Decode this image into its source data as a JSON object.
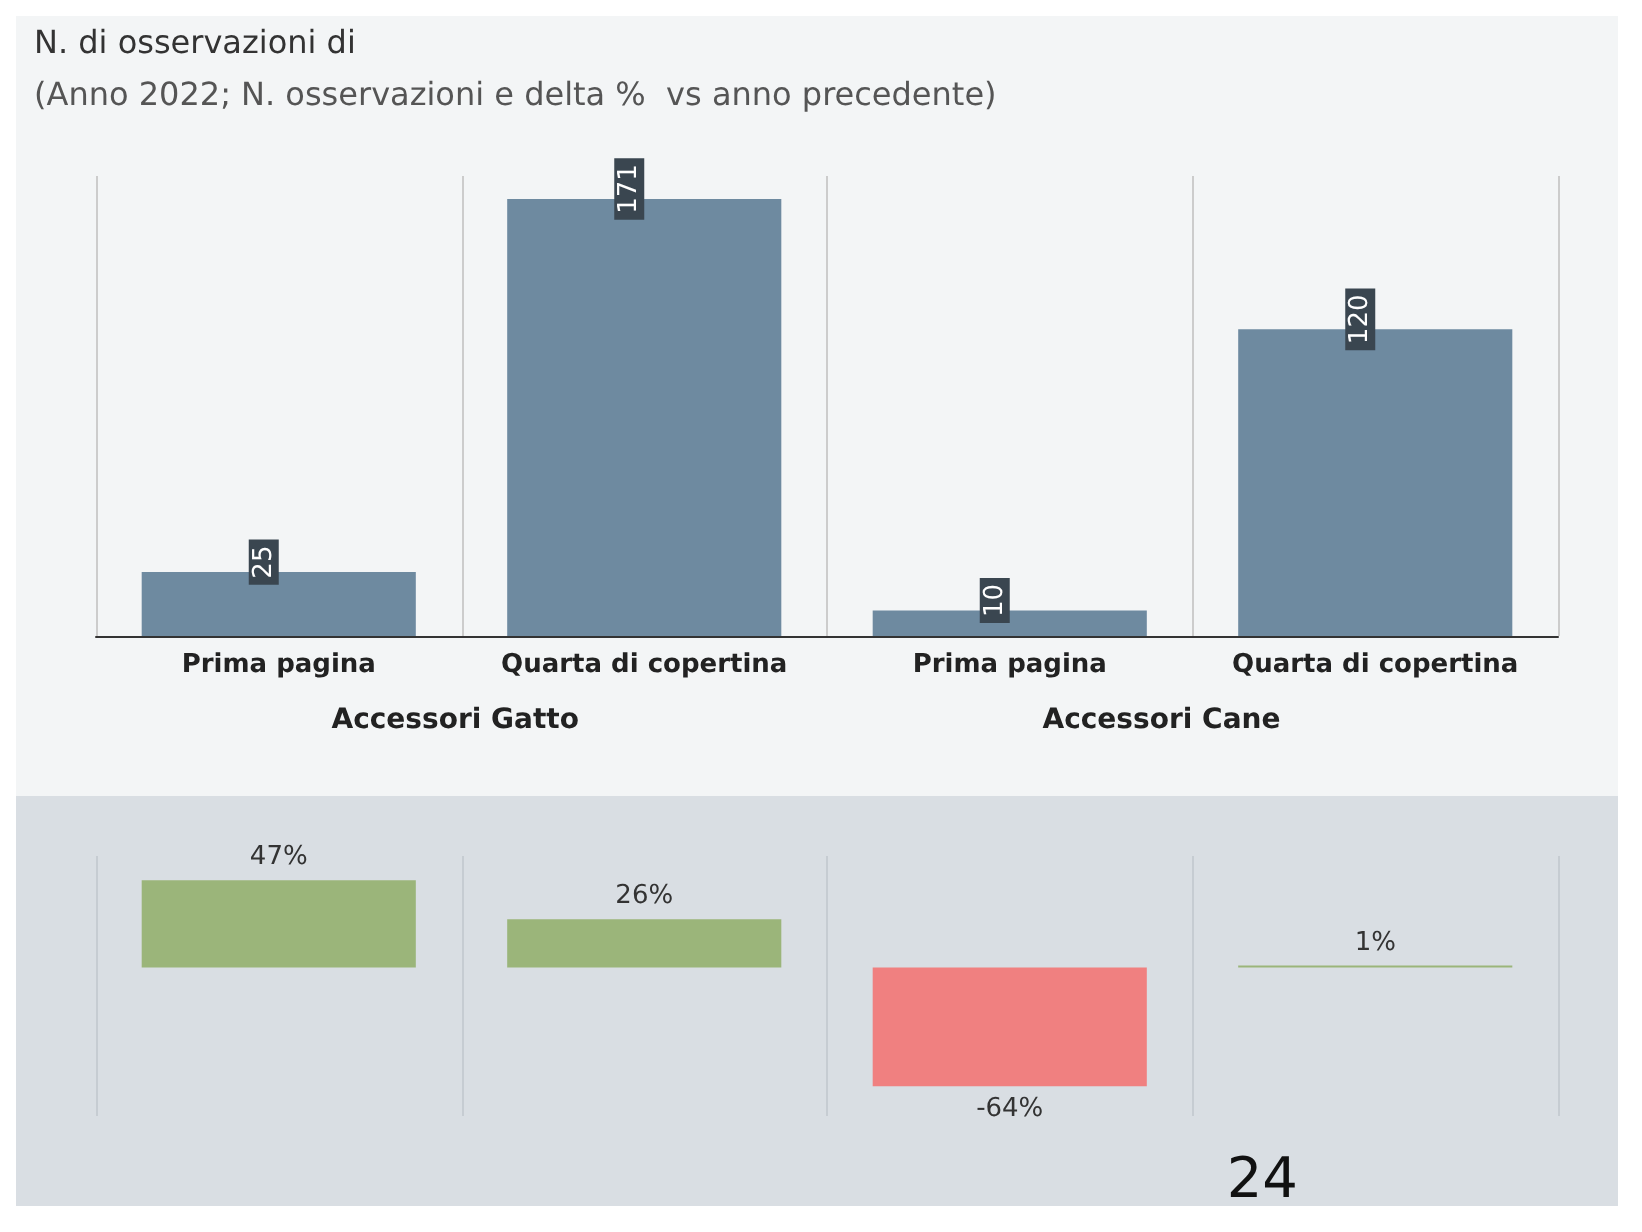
{
  "chart_data": [
    {
      "type": "bar",
      "title": "N. di osservazioni di",
      "subtitle": "(Anno 2022; N. osservazioni e delta %  vs anno precedente)",
      "categories": [
        "Prima pagina",
        "Quarta di copertina",
        "Prima pagina",
        "Quarta di copertina"
      ],
      "values": [
        25,
        171,
        10,
        120
      ],
      "color": "#6e8aa0",
      "data_labels": true,
      "annotations": [
        "Accessori Gatto",
        "Accessori Cane"
      ]
    },
    {
      "type": "bar",
      "categories": [
        null,
        null,
        null,
        null
      ],
      "values": [
        47,
        26,
        -64,
        1
      ],
      "colors": [
        "#9bb57a",
        "#9bb57a",
        "#f08080",
        "#9bb57a"
      ],
      "value_labels": [
        "47%",
        "26%",
        "-64%",
        "1%"
      ],
      "annotations": [
        "24"
      ]
    }
  ]
}
